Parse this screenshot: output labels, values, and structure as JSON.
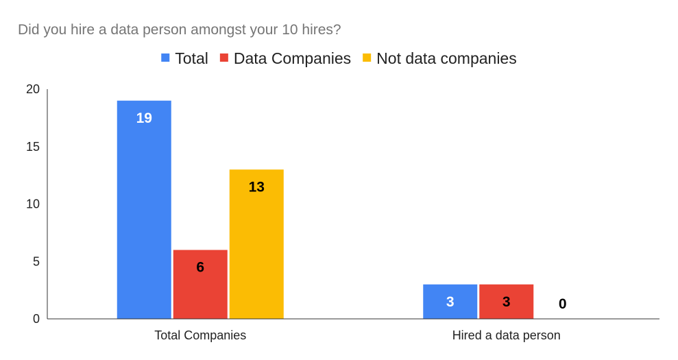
{
  "chart_data": {
    "type": "bar",
    "title": "Did you hire a data person amongst your 10 hires?",
    "xlabel": "",
    "ylabel": "",
    "categories": [
      "Total Companies",
      "Hired a data person"
    ],
    "series": [
      {
        "name": "Total",
        "values": [
          19,
          3
        ],
        "color": "#4285F4",
        "label_color": "#ffffff"
      },
      {
        "name": "Data Companies",
        "values": [
          6,
          3
        ],
        "color": "#EA4335",
        "label_color": "#000000"
      },
      {
        "name": "Not data companies",
        "values": [
          13,
          0
        ],
        "color": "#FBBC04",
        "label_color": "#000000"
      }
    ],
    "ylim": [
      0,
      20
    ],
    "yticks": [
      0,
      5,
      10,
      15,
      20
    ],
    "grid": false,
    "legend_position": "top"
  }
}
